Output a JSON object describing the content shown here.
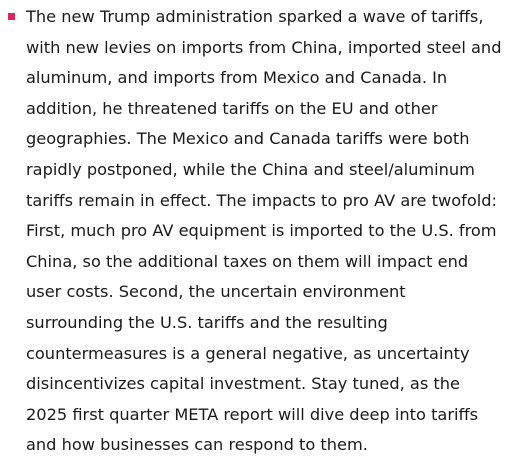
{
  "bullet": {
    "marker_color": "#e0245e",
    "lines": [
      "The new Trump administration sparked a wave of tariffs,",
      "with new levies on imports from China, imported steel and",
      "aluminum, and imports from Mexico and Canada. In",
      "addition, he threatened tariffs on the EU and other",
      "geographies. The Mexico and Canada tariffs were both",
      "rapidly postponed, while the China and steel/aluminum",
      "tariffs remain in effect. The impacts to pro AV are twofold:",
      "First, much pro AV equipment is imported to the U.S. from",
      "China, so the additional taxes on them will impact end",
      "user costs. Second, the uncertain environment",
      "surrounding the U.S. tariffs and the resulting",
      "countermeasures is a general negative, as uncertainty",
      "disincentivizes capital investment. Stay tuned, as the",
      "2025 first quarter META report will dive deep into tariffs",
      "and how businesses can respond to them."
    ]
  }
}
